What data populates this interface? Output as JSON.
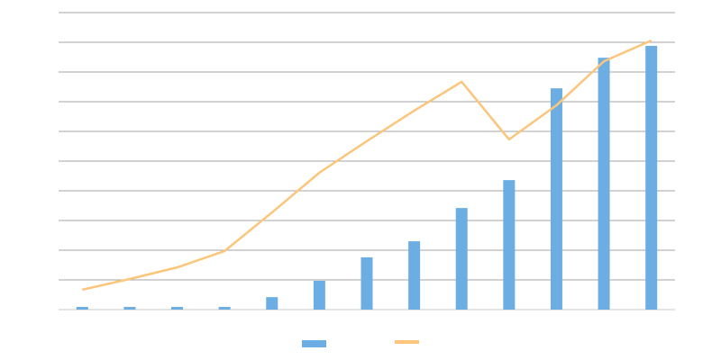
{
  "chart_data": {
    "type": "bar-line",
    "series": [
      {
        "type": "bar",
        "color": "#6caee3",
        "values": [
          0.09,
          0.09,
          0.09,
          0.09,
          0.42,
          0.97,
          1.76,
          2.3,
          3.42,
          4.36,
          7.45,
          8.48,
          8.88
        ]
      },
      {
        "type": "line",
        "color": "#fbc57b",
        "values": [
          0.67,
          1.03,
          1.42,
          1.97,
          3.27,
          4.61,
          5.67,
          6.7,
          7.67,
          5.73,
          6.88,
          8.36,
          9.06
        ]
      }
    ],
    "ylim": [
      0,
      10
    ],
    "yticks": [
      0,
      1,
      2,
      3,
      4,
      5,
      6,
      7,
      8,
      9,
      10
    ],
    "grid": true,
    "legend": "bottom"
  }
}
